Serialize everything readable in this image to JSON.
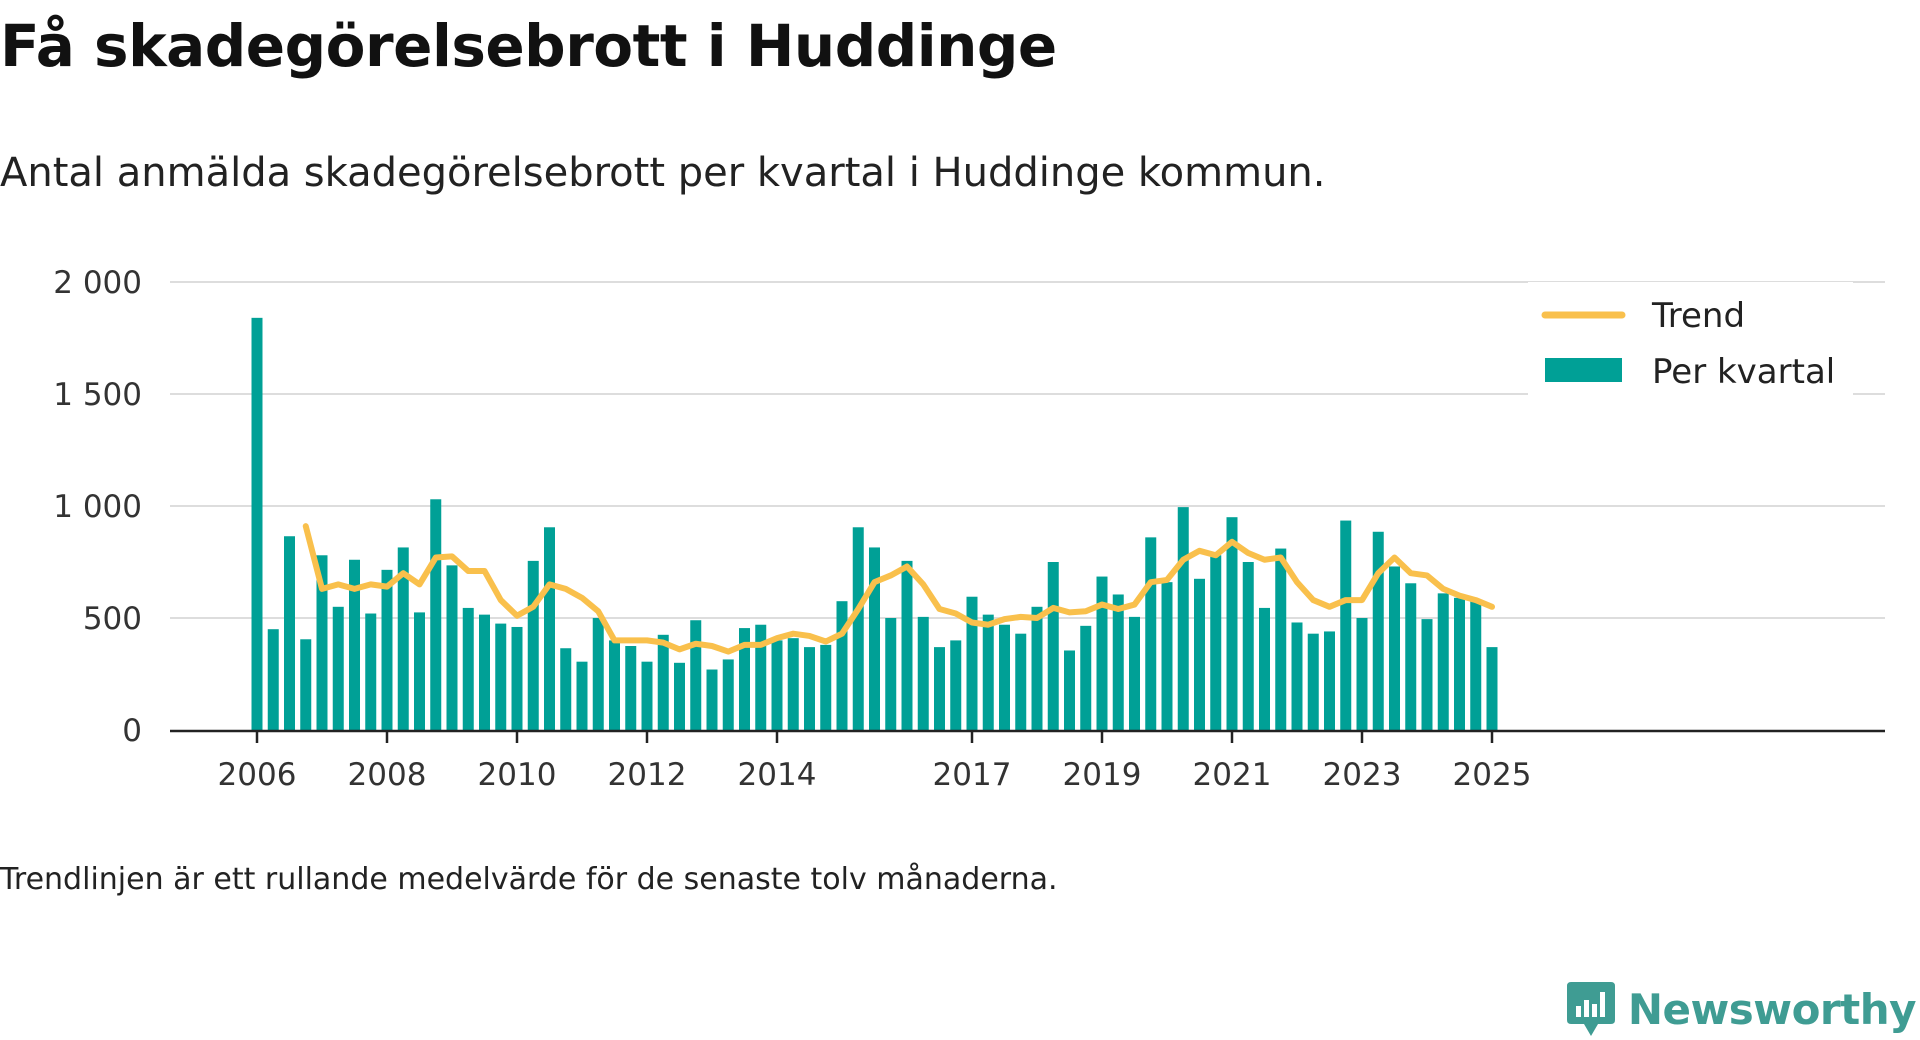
{
  "header": {
    "title": "Få skadegörelsebrott i Huddinge",
    "subtitle": "Antal anmälda skadegörelsebrott per kvartal i Huddinge kommun."
  },
  "footer": {
    "note": "Trendlinjen är ett rullande medelvärde för de senaste tolv månaderna.",
    "brand": "Newsworthy"
  },
  "colors": {
    "bars": "#00a096",
    "trend": "#f9c04c",
    "grid": "#dddddd",
    "brand": "#3f9c93"
  },
  "chart_data": {
    "type": "bar",
    "title": "Få skadegörelsebrott i Huddinge",
    "ylim": [
      0,
      2000
    ],
    "yticks": [
      0,
      500,
      1000,
      1500,
      2000
    ],
    "ytick_labels": [
      "0",
      "500",
      "1 000",
      "1 500",
      "2 000"
    ],
    "xticks": [
      {
        "label": "2006",
        "index": 0
      },
      {
        "label": "2008",
        "index": 8
      },
      {
        "label": "2010",
        "index": 16
      },
      {
        "label": "2012",
        "index": 24
      },
      {
        "label": "2014",
        "index": 32
      },
      {
        "label": "2017",
        "index": 44
      },
      {
        "label": "2019",
        "index": 52
      },
      {
        "label": "2021",
        "index": 60
      },
      {
        "label": "2023",
        "index": 68
      },
      {
        "label": "2025",
        "index": 76
      }
    ],
    "legend_position": "top-right",
    "series": [
      {
        "name": "Per kvartal",
        "type": "bar",
        "values": [
          1840,
          450,
          865,
          405,
          780,
          550,
          760,
          520,
          715,
          815,
          525,
          1030,
          735,
          545,
          515,
          475,
          460,
          755,
          905,
          365,
          305,
          500,
          400,
          375,
          305,
          425,
          300,
          490,
          270,
          315,
          455,
          470,
          400,
          410,
          370,
          380,
          575,
          905,
          815,
          500,
          755,
          505,
          370,
          400,
          595,
          515,
          470,
          430,
          550,
          750,
          355,
          465,
          685,
          605,
          505,
          860,
          660,
          995,
          675,
          780,
          950,
          750,
          545,
          810,
          480,
          430,
          440,
          935,
          500,
          885,
          730,
          655,
          495,
          610,
          590,
          575,
          370
        ]
      },
      {
        "name": "Trend",
        "type": "line",
        "start_index": 3,
        "values": [
          910,
          630,
          650,
          630,
          650,
          640,
          700,
          650,
          770,
          775,
          710,
          710,
          580,
          510,
          550,
          650,
          630,
          590,
          530,
          400,
          400,
          400,
          390,
          360,
          385,
          375,
          350,
          380,
          380,
          410,
          430,
          420,
          395,
          430,
          540,
          660,
          690,
          730,
          650,
          540,
          520,
          480,
          470,
          495,
          505,
          500,
          545,
          525,
          530,
          560,
          540,
          560,
          660,
          670,
          760,
          800,
          780,
          840,
          790,
          760,
          770,
          660,
          580,
          550,
          580,
          580,
          700,
          770,
          700,
          690,
          630,
          600,
          580,
          550
        ]
      }
    ]
  }
}
